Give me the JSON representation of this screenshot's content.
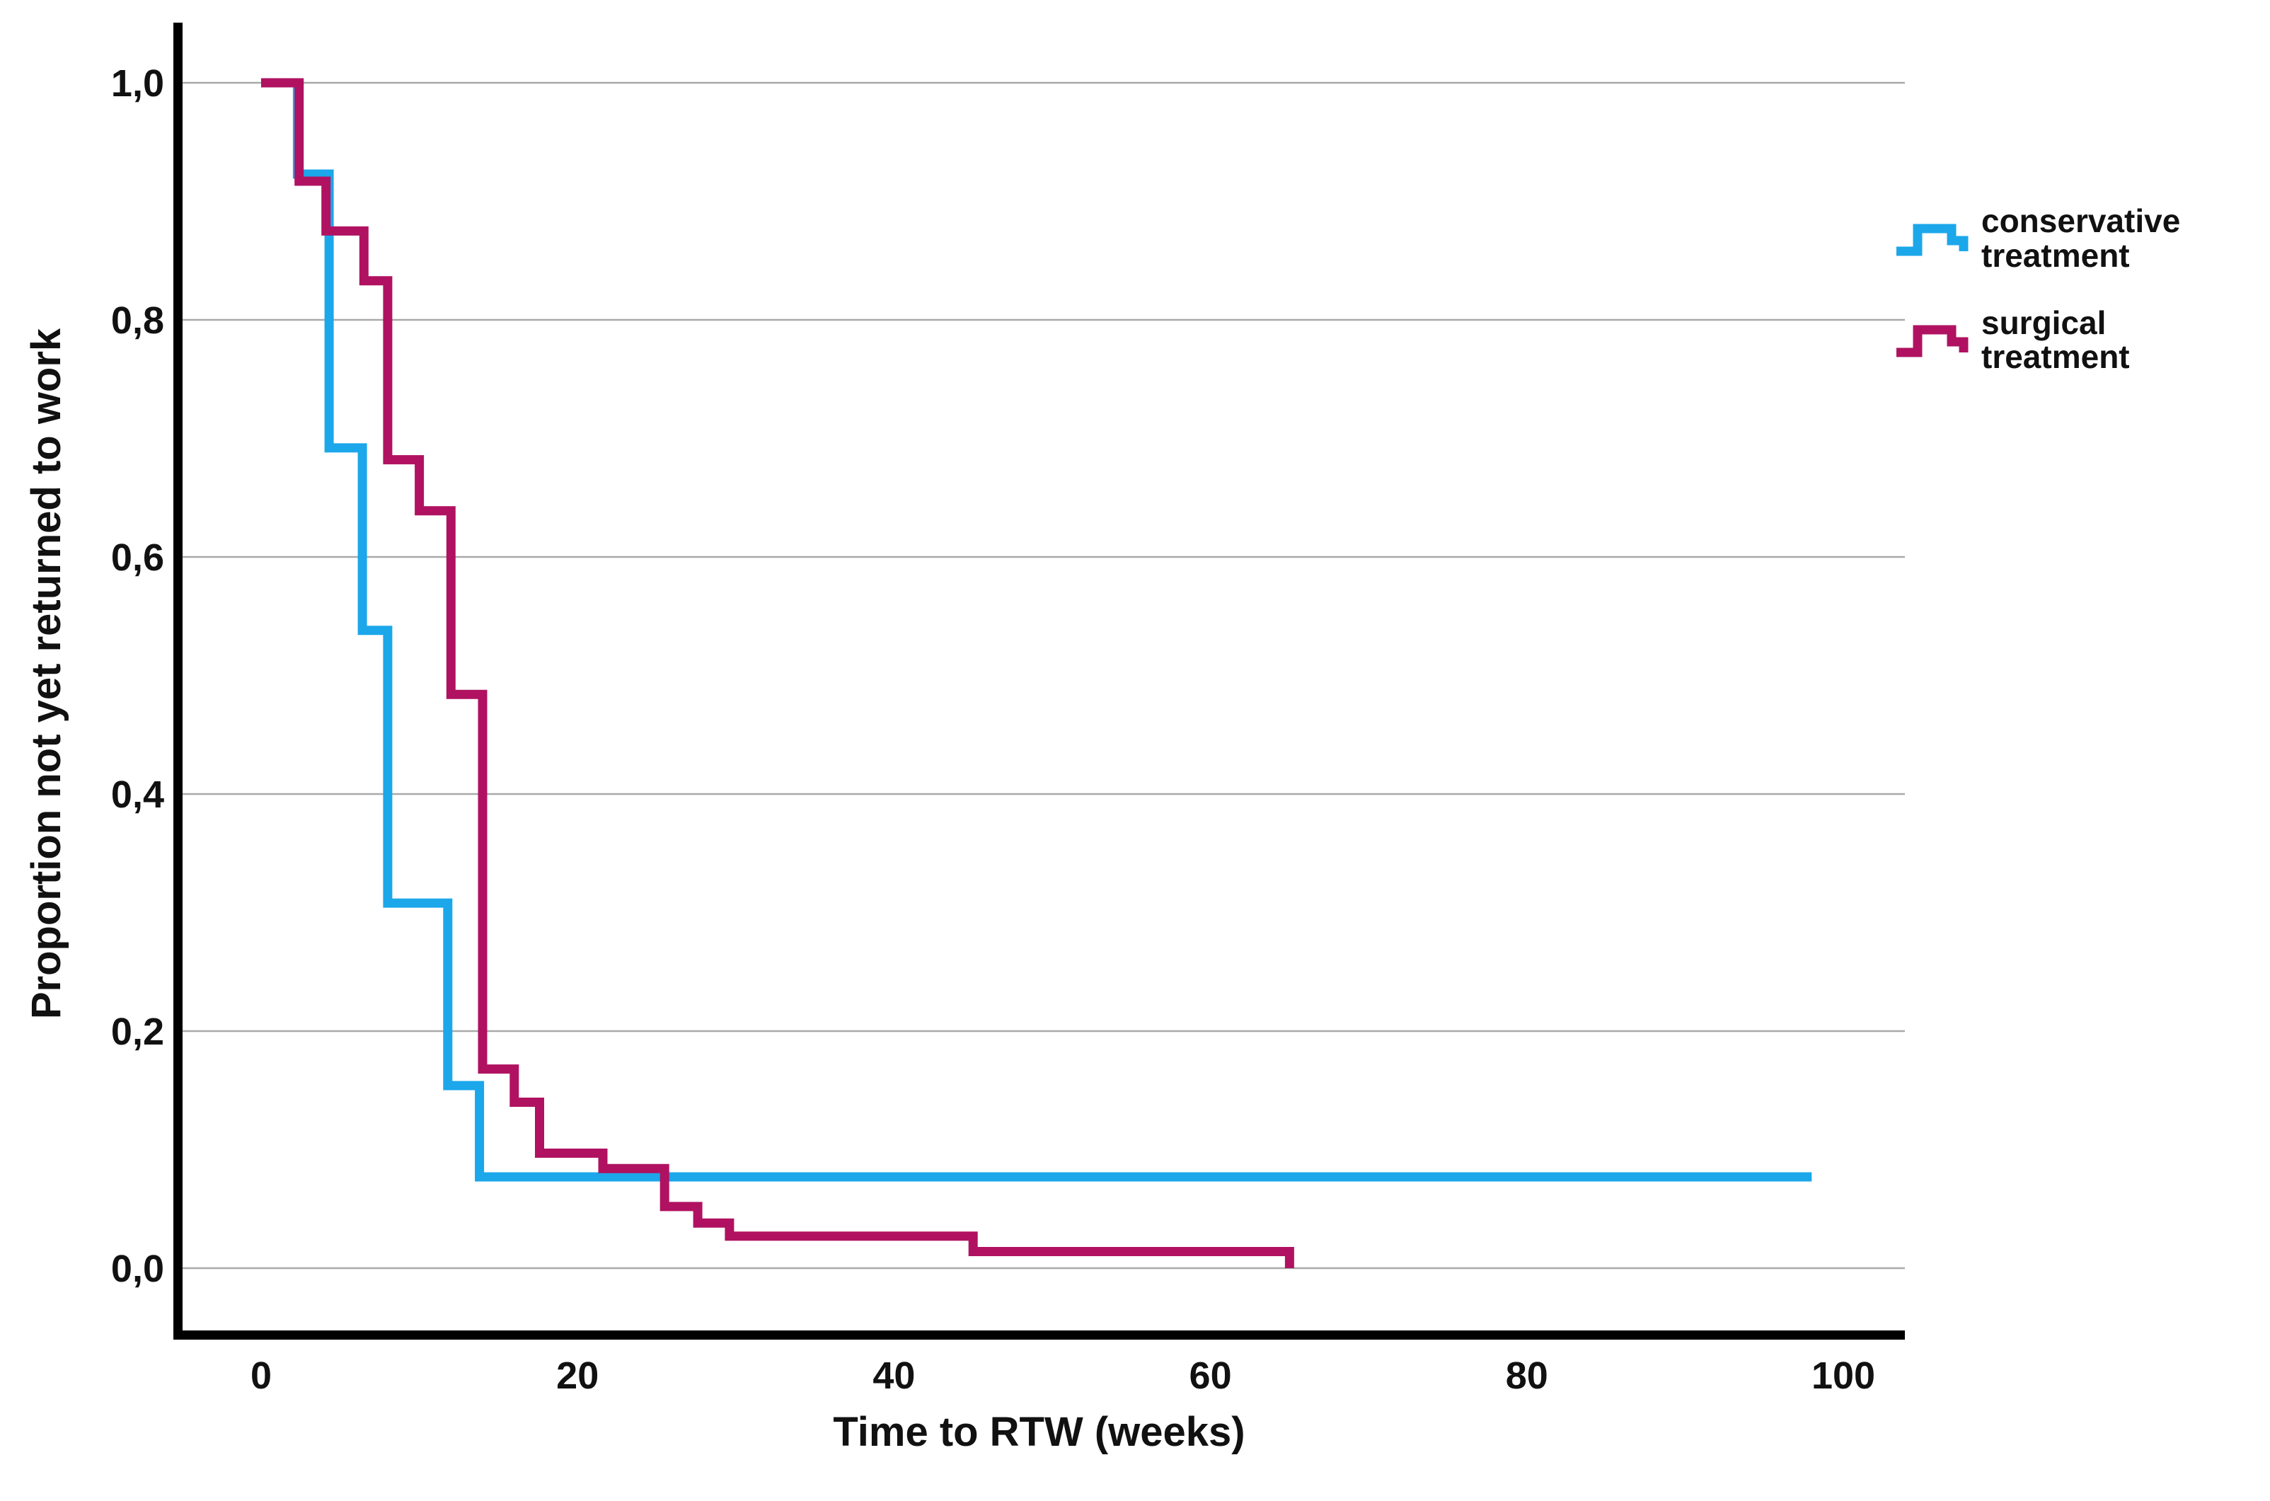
{
  "chart_data": {
    "type": "line",
    "subtype": "kaplan_meier_step_survival",
    "title": "",
    "xlabel": "Time to RTW (weeks)",
    "ylabel": "Proportion not yet returned to work",
    "x_ticks": {
      "values": [
        0,
        20,
        40,
        60,
        80,
        100
      ],
      "labels": [
        "0",
        "20",
        "40",
        "60",
        "80",
        "100"
      ]
    },
    "y_ticks": {
      "values": [
        1.0,
        0.8,
        0.6,
        0.4,
        0.2,
        0.0
      ],
      "labels": [
        "1,0",
        "0,8",
        "0,6",
        "0,4",
        "0,2",
        "0,0"
      ]
    },
    "xlim": [
      -5,
      104
    ],
    "ylim": [
      0.0,
      1.05
    ],
    "grid": true,
    "gridline_color": "#a9a9a9",
    "legend_position": "right",
    "series": [
      {
        "name": "conservative treatment",
        "color": "#1BA7EA",
        "points": [
          [
            0,
            1.0
          ],
          [
            2.3,
            0.923
          ],
          [
            4.3,
            0.692
          ],
          [
            6.4,
            0.538
          ],
          [
            8,
            0.308
          ],
          [
            11.8,
            0.154
          ],
          [
            13.8,
            0.077
          ],
          [
            98,
            0.077
          ]
        ],
        "ends_with_event": false
      },
      {
        "name": "surgical treatment",
        "color": "#B01261",
        "points": [
          [
            0,
            1.0
          ],
          [
            2.4,
            0.917
          ],
          [
            4.1,
            0.875
          ],
          [
            6.5,
            0.833
          ],
          [
            8,
            0.682
          ],
          [
            10,
            0.639
          ],
          [
            12,
            0.484
          ],
          [
            14,
            0.168
          ],
          [
            16,
            0.14
          ],
          [
            17.6,
            0.097
          ],
          [
            21.6,
            0.084
          ],
          [
            25.5,
            0.052
          ],
          [
            27.6,
            0.038
          ],
          [
            29.6,
            0.027
          ],
          [
            45,
            0.014
          ],
          [
            65,
            0.0
          ]
        ],
        "ends_with_event": true
      }
    ]
  },
  "axes": {
    "x_title": "Time to RTW (weeks)",
    "y_title": "Proportion not yet returned to work"
  },
  "legend": {
    "items": [
      {
        "line1": "conservative",
        "line2": "treatment",
        "color": "#1BA7EA",
        "icon": "step-line-icon"
      },
      {
        "line1": "surgical",
        "line2": "treatment",
        "color": "#B01261",
        "icon": "step-line-icon"
      }
    ]
  },
  "colors": {
    "conservative": "#1BA7EA",
    "surgical": "#B01261",
    "gridline": "#a9a9a9",
    "axis": "#000000",
    "text": "#111111",
    "background": "#ffffff"
  }
}
